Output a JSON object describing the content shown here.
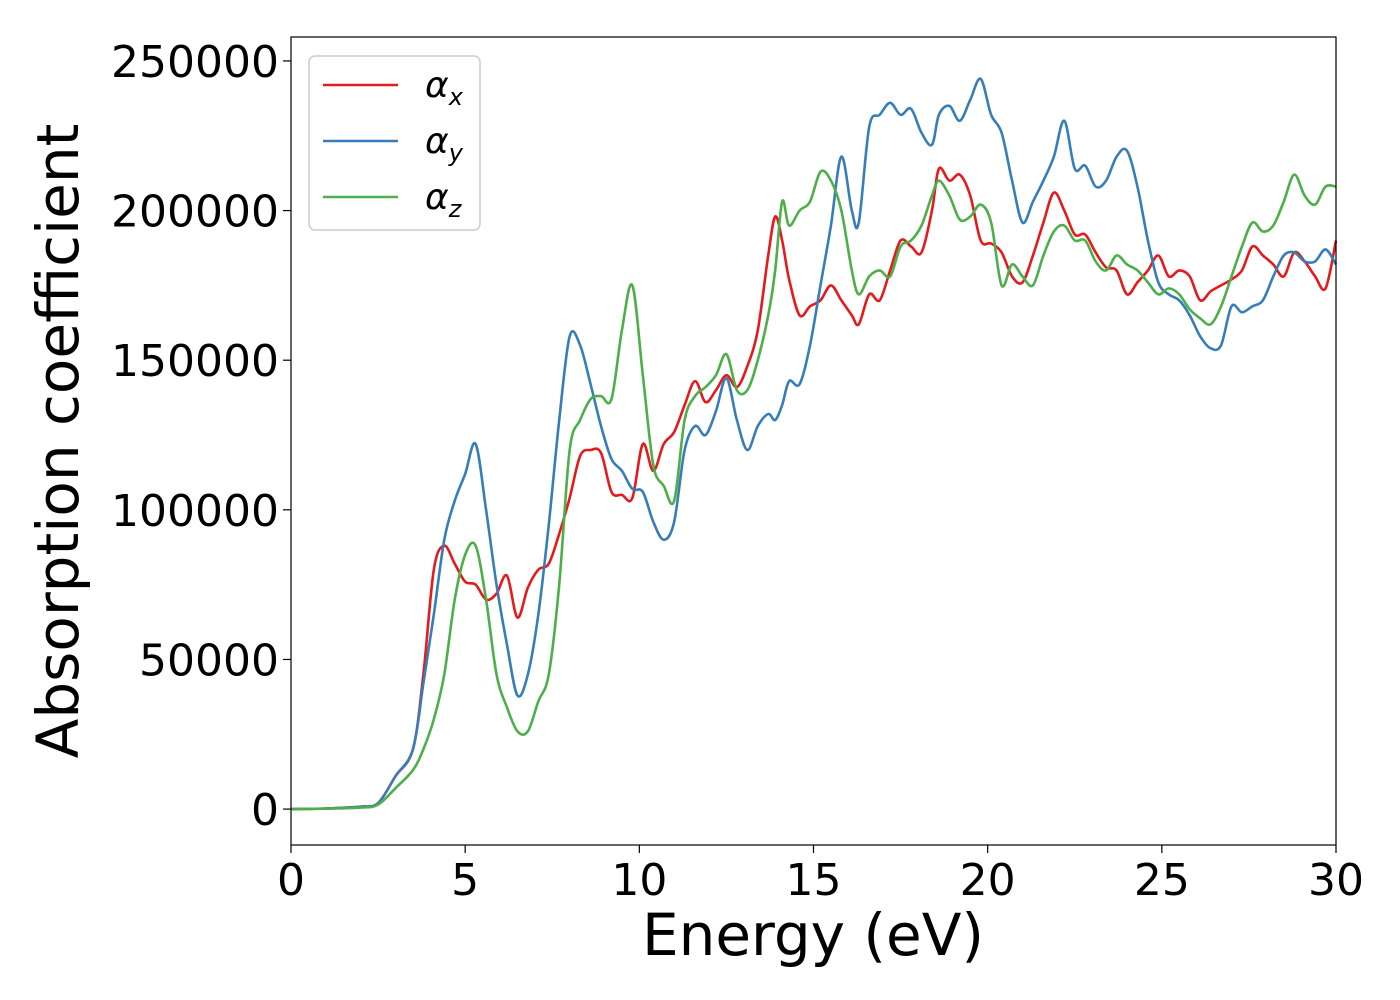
{
  "chart_data": {
    "type": "line",
    "xlabel": "Energy (eV)",
    "ylabel": "Absorption coefficient",
    "xlim": [
      0,
      30
    ],
    "ylim": [
      -12000,
      258000
    ],
    "xticks": [
      "0",
      "5",
      "10",
      "15",
      "20",
      "25",
      "30"
    ],
    "yticks": [
      "0",
      "50000",
      "100000",
      "150000",
      "200000",
      "250000"
    ],
    "grid": false,
    "legend": "top-left",
    "series": [
      {
        "name": "α",
        "subscript": "x",
        "color": "#e41a1c",
        "x": [
          0,
          1,
          2,
          2.5,
          3,
          3.5,
          3.8,
          4.1,
          4.4,
          4.7,
          5.0,
          5.3,
          5.6,
          5.9,
          6.2,
          6.5,
          6.8,
          7.1,
          7.4,
          7.7,
          8.0,
          8.3,
          8.6,
          8.9,
          9.2,
          9.5,
          9.8,
          10.1,
          10.4,
          10.7,
          11.0,
          11.3,
          11.6,
          11.9,
          12.2,
          12.5,
          12.8,
          13.1,
          13.4,
          13.7,
          13.9,
          14.1,
          14.3,
          14.6,
          14.9,
          15.2,
          15.5,
          15.8,
          16.1,
          16.3,
          16.6,
          16.9,
          17.2,
          17.5,
          17.8,
          18.1,
          18.4,
          18.6,
          18.9,
          19.2,
          19.5,
          19.8,
          20.1,
          20.4,
          20.7,
          21.0,
          21.3,
          21.6,
          21.9,
          22.2,
          22.5,
          22.8,
          23.1,
          23.4,
          23.7,
          24.0,
          24.3,
          24.6,
          24.9,
          25.2,
          25.5,
          25.8,
          26.1,
          26.4,
          26.7,
          27.0,
          27.3,
          27.6,
          27.9,
          28.2,
          28.5,
          28.8,
          29.1,
          29.4,
          29.7,
          30.0
        ],
        "y": [
          0,
          200,
          800,
          2000,
          11000,
          20000,
          45000,
          80000,
          88000,
          82000,
          76000,
          75000,
          70000,
          72000,
          78000,
          64000,
          74000,
          80000,
          82000,
          92000,
          104000,
          118000,
          120000,
          119000,
          106000,
          105000,
          104000,
          122000,
          113000,
          122000,
          126000,
          135000,
          143000,
          136000,
          140000,
          145000,
          141000,
          148000,
          160000,
          185000,
          198000,
          190000,
          177000,
          165000,
          168000,
          170000,
          175000,
          170000,
          165000,
          162000,
          172000,
          170000,
          180000,
          190000,
          188000,
          186000,
          200000,
          214000,
          210000,
          212000,
          205000,
          190000,
          189000,
          186000,
          178000,
          176000,
          185000,
          196000,
          206000,
          200000,
          192000,
          192000,
          186000,
          181000,
          180000,
          172000,
          176000,
          180000,
          185000,
          178000,
          180000,
          178000,
          170000,
          173000,
          175000,
          177000,
          180000,
          188000,
          185000,
          182000,
          178000,
          186000,
          183000,
          178000,
          174000,
          190000
        ]
      },
      {
        "name": "α",
        "subscript": "y",
        "color": "#377eb8",
        "x": [
          0,
          1,
          2,
          2.5,
          3,
          3.5,
          3.8,
          4.1,
          4.4,
          4.7,
          5.0,
          5.3,
          5.6,
          5.9,
          6.2,
          6.5,
          6.8,
          7.1,
          7.4,
          7.7,
          8.0,
          8.3,
          8.6,
          8.9,
          9.2,
          9.5,
          9.8,
          10.1,
          10.4,
          10.7,
          11.0,
          11.3,
          11.6,
          11.9,
          12.2,
          12.5,
          12.8,
          13.1,
          13.4,
          13.7,
          13.9,
          14.1,
          14.3,
          14.6,
          14.9,
          15.2,
          15.5,
          15.8,
          16.1,
          16.3,
          16.6,
          16.9,
          17.2,
          17.5,
          17.8,
          18.1,
          18.4,
          18.6,
          18.9,
          19.2,
          19.5,
          19.8,
          20.1,
          20.4,
          20.7,
          21.0,
          21.3,
          21.6,
          21.9,
          22.2,
          22.5,
          22.8,
          23.1,
          23.4,
          23.7,
          24.0,
          24.3,
          24.6,
          24.9,
          25.2,
          25.5,
          25.8,
          26.1,
          26.4,
          26.7,
          27.0,
          27.3,
          27.6,
          27.9,
          28.2,
          28.5,
          28.8,
          29.1,
          29.4,
          29.7,
          30.0
        ],
        "y": [
          0,
          200,
          800,
          2000,
          11000,
          20000,
          42000,
          65000,
          90000,
          103000,
          112000,
          122000,
          100000,
          75000,
          55000,
          38000,
          45000,
          65000,
          95000,
          130000,
          158000,
          155000,
          142000,
          128000,
          117000,
          113000,
          107000,
          106000,
          96000,
          90000,
          96000,
          120000,
          128000,
          125000,
          133000,
          144000,
          130000,
          120000,
          128000,
          132000,
          130000,
          135000,
          143000,
          142000,
          155000,
          175000,
          195000,
          218000,
          200000,
          196000,
          228000,
          232000,
          236000,
          232000,
          234000,
          226000,
          222000,
          232000,
          235000,
          230000,
          237000,
          244000,
          232000,
          226000,
          210000,
          196000,
          203000,
          210000,
          218000,
          230000,
          214000,
          215000,
          208000,
          210000,
          218000,
          220000,
          208000,
          190000,
          176000,
          172000,
          170000,
          165000,
          158000,
          154000,
          155000,
          168000,
          166000,
          168000,
          170000,
          178000,
          185000,
          186000,
          183000,
          183000,
          187000,
          182000
        ]
      },
      {
        "name": "α",
        "subscript": "z",
        "color": "#4daf4a",
        "x": [
          0,
          1,
          2,
          2.5,
          3,
          3.5,
          3.8,
          4.1,
          4.4,
          4.7,
          5.0,
          5.3,
          5.6,
          5.9,
          6.2,
          6.5,
          6.8,
          7.1,
          7.4,
          7.7,
          8.0,
          8.3,
          8.6,
          8.9,
          9.2,
          9.5,
          9.8,
          10.1,
          10.4,
          10.7,
          11.0,
          11.3,
          11.6,
          11.9,
          12.2,
          12.5,
          12.8,
          13.1,
          13.4,
          13.7,
          13.9,
          14.1,
          14.3,
          14.6,
          14.9,
          15.2,
          15.5,
          15.8,
          16.1,
          16.3,
          16.6,
          16.9,
          17.2,
          17.5,
          17.8,
          18.1,
          18.4,
          18.6,
          18.9,
          19.2,
          19.5,
          19.8,
          20.1,
          20.4,
          20.7,
          21.0,
          21.3,
          21.6,
          21.9,
          22.2,
          22.5,
          22.8,
          23.1,
          23.4,
          23.7,
          24.0,
          24.3,
          24.6,
          24.9,
          25.2,
          25.5,
          25.8,
          26.1,
          26.4,
          26.7,
          27.0,
          27.3,
          27.6,
          27.9,
          28.2,
          28.5,
          28.8,
          29.1,
          29.4,
          29.7,
          30.0
        ],
        "y": [
          0,
          150,
          500,
          1500,
          7000,
          13000,
          20000,
          30000,
          45000,
          70000,
          85000,
          88000,
          70000,
          45000,
          34000,
          26000,
          26000,
          36000,
          45000,
          75000,
          120000,
          130000,
          137000,
          138000,
          137000,
          160000,
          175000,
          145000,
          115000,
          108000,
          103000,
          130000,
          138000,
          141000,
          145000,
          152000,
          140000,
          140000,
          150000,
          165000,
          180000,
          203000,
          195000,
          200000,
          203000,
          213000,
          210000,
          200000,
          180000,
          172000,
          178000,
          180000,
          178000,
          188000,
          190000,
          195000,
          205000,
          210000,
          205000,
          197000,
          198000,
          202000,
          196000,
          175000,
          182000,
          178000,
          175000,
          185000,
          193000,
          195000,
          190000,
          190000,
          183000,
          180000,
          185000,
          182000,
          180000,
          176000,
          172000,
          174000,
          172000,
          167000,
          164000,
          162000,
          168000,
          178000,
          188000,
          196000,
          193000,
          195000,
          203000,
          212000,
          205000,
          202000,
          208000,
          208000
        ]
      }
    ]
  }
}
